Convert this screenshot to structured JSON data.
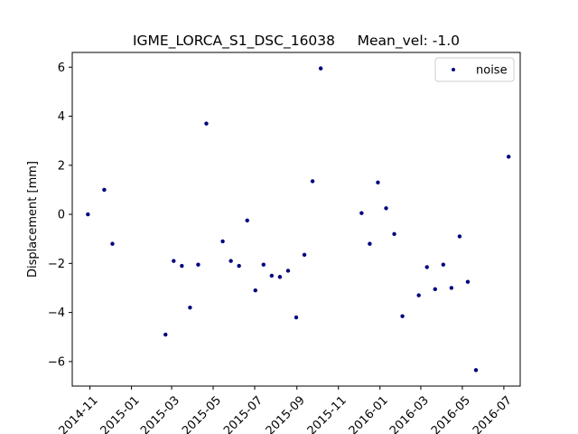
{
  "chart_data": {
    "type": "scatter",
    "title": "IGME_LORCA_S1_DSC_16038     Mean_vel: -1.0",
    "xlabel": "",
    "ylabel": "Displacement [mm]",
    "x_type": "date",
    "xlim": [
      "2014-10-06",
      "2016-07-25"
    ],
    "ylim": [
      -7.0,
      6.6
    ],
    "xticks": [
      "2014-11",
      "2015-01",
      "2015-03",
      "2015-05",
      "2015-07",
      "2015-09",
      "2015-11",
      "2016-01",
      "2016-03",
      "2016-05",
      "2016-07"
    ],
    "yticks": [
      -6,
      -4,
      -2,
      0,
      2,
      4,
      6
    ],
    "grid": false,
    "legend": {
      "position": "top-right",
      "entries": [
        "noise"
      ]
    },
    "series": [
      {
        "name": "noise",
        "color": "#000080",
        "marker": "dot",
        "points": [
          {
            "x": "2014-10-29",
            "y": 0.0
          },
          {
            "x": "2014-11-22",
            "y": 1.0
          },
          {
            "x": "2014-12-04",
            "y": -1.2
          },
          {
            "x": "2015-02-20",
            "y": -4.9
          },
          {
            "x": "2015-03-04",
            "y": -1.9
          },
          {
            "x": "2015-03-16",
            "y": -2.1
          },
          {
            "x": "2015-03-28",
            "y": -3.8
          },
          {
            "x": "2015-04-09",
            "y": -2.05
          },
          {
            "x": "2015-04-21",
            "y": 3.7
          },
          {
            "x": "2015-05-15",
            "y": -1.1
          },
          {
            "x": "2015-05-27",
            "y": -1.9
          },
          {
            "x": "2015-06-08",
            "y": -2.1
          },
          {
            "x": "2015-06-20",
            "y": -0.25
          },
          {
            "x": "2015-07-02",
            "y": -3.1
          },
          {
            "x": "2015-07-14",
            "y": -2.05
          },
          {
            "x": "2015-07-26",
            "y": -2.5
          },
          {
            "x": "2015-08-07",
            "y": -2.55
          },
          {
            "x": "2015-08-19",
            "y": -2.3
          },
          {
            "x": "2015-08-31",
            "y": -4.2
          },
          {
            "x": "2015-09-12",
            "y": -1.65
          },
          {
            "x": "2015-09-24",
            "y": 1.35
          },
          {
            "x": "2015-10-06",
            "y": 5.95
          },
          {
            "x": "2015-12-05",
            "y": 0.05
          },
          {
            "x": "2015-12-17",
            "y": -1.2
          },
          {
            "x": "2015-12-29",
            "y": 1.3
          },
          {
            "x": "2016-01-10",
            "y": 0.25
          },
          {
            "x": "2016-01-22",
            "y": -0.8
          },
          {
            "x": "2016-02-03",
            "y": -4.15
          },
          {
            "x": "2016-02-27",
            "y": -3.3
          },
          {
            "x": "2016-03-10",
            "y": -2.15
          },
          {
            "x": "2016-03-22",
            "y": -3.05
          },
          {
            "x": "2016-04-03",
            "y": -2.05
          },
          {
            "x": "2016-04-15",
            "y": -3.0
          },
          {
            "x": "2016-04-27",
            "y": -0.9
          },
          {
            "x": "2016-05-09",
            "y": -2.75
          },
          {
            "x": "2016-05-21",
            "y": -6.35
          },
          {
            "x": "2016-07-08",
            "y": 2.35
          }
        ]
      }
    ]
  }
}
